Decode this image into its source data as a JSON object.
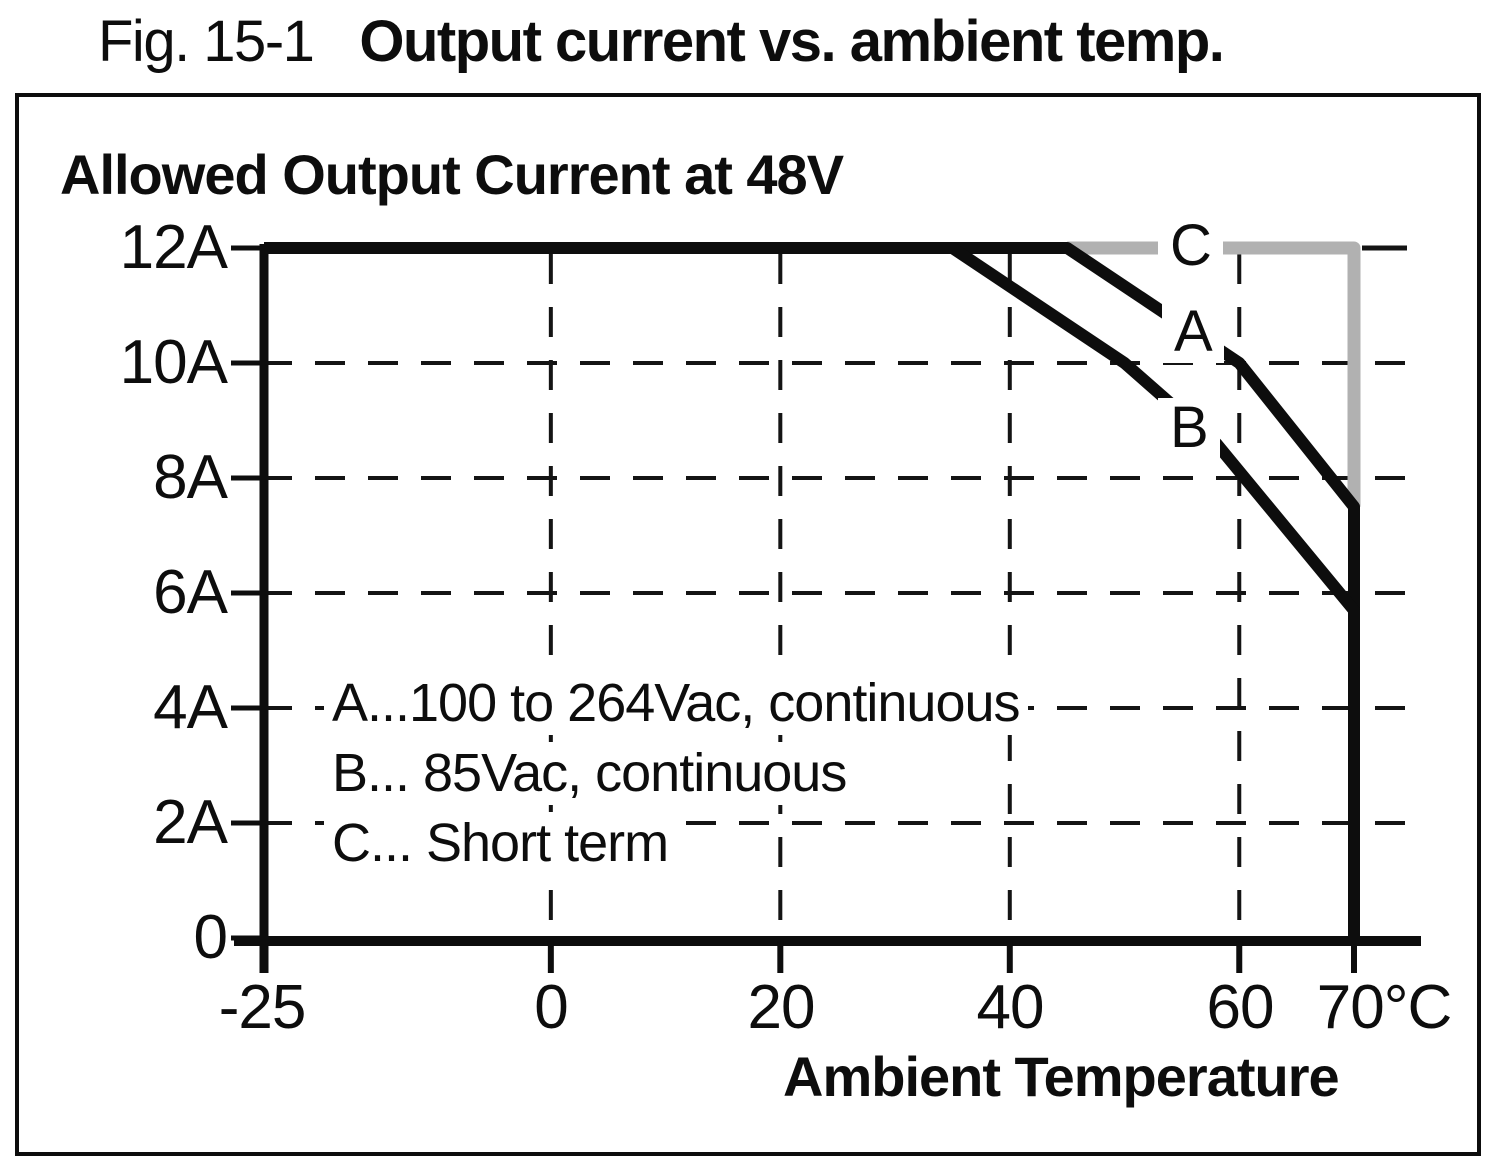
{
  "figure": {
    "caption_prefix": "Fig. 15-1",
    "caption_title": "Output current vs. ambient temp.",
    "chart_title": "Allowed Output Current at 48V",
    "x_axis_title": "Ambient Temperature"
  },
  "legend": {
    "line_a": "A...100 to 264Vac, continuous",
    "line_b": "B... 85Vac, continuous",
    "line_c": "C... Short term"
  },
  "curve_labels": {
    "a": "A",
    "b": "B",
    "c": "C"
  },
  "colors": {
    "line_black": "#0d0d0d",
    "line_gray": "#b1b1b1",
    "grid": "#141414",
    "background": "#ffffff"
  },
  "chart_data": {
    "type": "line",
    "title": "Allowed Output Current at 48V",
    "xlabel": "Ambient Temperature (°C)",
    "ylabel": "Allowed Output Current (A)",
    "xlim": [
      -25,
      70
    ],
    "ylim": [
      0,
      12
    ],
    "grid": "dashed",
    "legend_position": "inside lower-left",
    "x_ticks": [
      {
        "value": -25,
        "label": "-25"
      },
      {
        "value": 0,
        "label": "0"
      },
      {
        "value": 20,
        "label": "20"
      },
      {
        "value": 40,
        "label": "40"
      },
      {
        "value": 60,
        "label": "60"
      },
      {
        "value": 70,
        "label": "70°C"
      }
    ],
    "y_ticks": [
      {
        "value": 12,
        "label": "12A"
      },
      {
        "value": 10,
        "label": "10A"
      },
      {
        "value": 8,
        "label": "8A"
      },
      {
        "value": 6,
        "label": "6A"
      },
      {
        "value": 4,
        "label": "4A"
      },
      {
        "value": 2,
        "label": "2A"
      },
      {
        "value": 0,
        "label": "0"
      }
    ],
    "series": [
      {
        "name": "C",
        "description": "Short term",
        "color": "#b1b1b1",
        "width": 13,
        "points": [
          [
            45,
            12
          ],
          [
            70,
            12
          ],
          [
            70,
            7.5
          ]
        ]
      },
      {
        "name": "A",
        "description": "100 to 264Vac, continuous",
        "color": "#0d0d0d",
        "width": 12,
        "points": [
          [
            -25,
            12
          ],
          [
            45,
            12
          ],
          [
            60,
            10
          ],
          [
            70,
            7.5
          ],
          [
            70,
            0
          ]
        ]
      },
      {
        "name": "B",
        "description": "85Vac, continuous",
        "color": "#0d0d0d",
        "width": 12,
        "points": [
          [
            -25,
            12
          ],
          [
            35,
            12
          ],
          [
            50,
            10
          ],
          [
            58,
            8.6
          ],
          [
            70,
            5.7
          ],
          [
            70,
            0
          ]
        ]
      }
    ]
  }
}
